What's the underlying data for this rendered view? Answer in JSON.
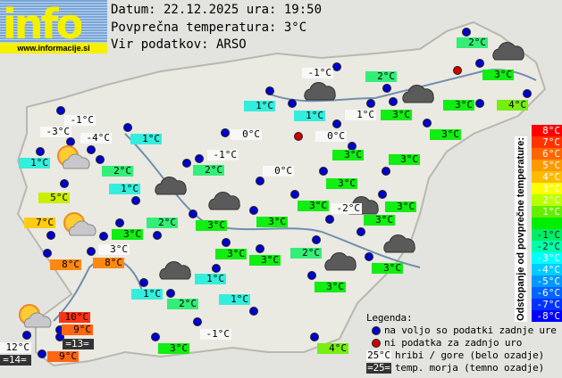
{
  "logo": {
    "word": "info",
    "url": "www.informacije.si"
  },
  "header": {
    "date_line": "Datum: 22.12.2025 ura: 19:50",
    "avg_line": "Povprečna temperatura: 3°C",
    "source_line": "Vir podatkov: ARSO"
  },
  "colors": {
    "white": "#f8f8f6",
    "dark": "#333333",
    "green": "#11ee11",
    "mint": "#33ee77",
    "cyan": "#33eedd",
    "lime": "#77ee11",
    "yellowgreen": "#ccee00",
    "amber": "#ffcc11",
    "orange": "#ff8811",
    "darkorange": "#ff6611",
    "red": "#ff3311",
    "dot_available": "#0000cc",
    "dot_missing": "#cc0000"
  },
  "labels": [
    {
      "t": "2°C",
      "c": "mint"
    },
    {
      "t": "3°C",
      "c": "green"
    },
    {
      "t": "4°C",
      "c": "lime"
    },
    {
      "t": "3°C",
      "c": "green"
    },
    {
      "t": "-1°C",
      "c": "white"
    },
    {
      "t": "2°C",
      "c": "mint"
    },
    {
      "t": "3°C",
      "c": "green"
    },
    {
      "t": "1°C",
      "c": "white"
    },
    {
      "t": "1°C",
      "c": "cyan"
    },
    {
      "t": "1°C",
      "c": "cyan"
    },
    {
      "t": "0°C",
      "c": "white"
    },
    {
      "t": "0°C",
      "c": "white"
    },
    {
      "t": "3°C",
      "c": "green"
    },
    {
      "t": "3°C",
      "c": "green"
    },
    {
      "t": "3°C",
      "c": "green"
    },
    {
      "t": "3°C",
      "c": "green"
    },
    {
      "t": "0°C",
      "c": "white"
    },
    {
      "t": "3°C",
      "c": "green"
    },
    {
      "t": "-2°C",
      "c": "white"
    },
    {
      "t": "3°C",
      "c": "green"
    },
    {
      "t": "3°C",
      "c": "green"
    },
    {
      "t": "3°C",
      "c": "green"
    },
    {
      "t": "-1°C",
      "c": "white"
    },
    {
      "t": "-3°C",
      "c": "white"
    },
    {
      "t": "-4°C",
      "c": "white"
    },
    {
      "t": "1°C",
      "c": "cyan"
    },
    {
      "t": "2°C",
      "c": "mint"
    },
    {
      "t": "1°C",
      "c": "cyan"
    },
    {
      "t": "5°C",
      "c": "yellowgreen"
    },
    {
      "t": "1°C",
      "c": "cyan"
    },
    {
      "t": "-1°C",
      "c": "white"
    },
    {
      "t": "2°C",
      "c": "mint"
    },
    {
      "t": "7°C",
      "c": "amber"
    },
    {
      "t": "3°C",
      "c": "green"
    },
    {
      "t": "2°C",
      "c": "mint"
    },
    {
      "t": "3°C",
      "c": "green"
    },
    {
      "t": "8°C",
      "c": "orange"
    },
    {
      "t": "3°C",
      "c": "white"
    },
    {
      "t": "8°C",
      "c": "orange"
    },
    {
      "t": "3°C",
      "c": "green"
    },
    {
      "t": "2°C",
      "c": "mint"
    },
    {
      "t": "3°C",
      "c": "green"
    },
    {
      "t": "3°C",
      "c": "green"
    },
    {
      "t": "1°C",
      "c": "cyan"
    },
    {
      "t": "1°C",
      "c": "cyan"
    },
    {
      "t": "2°C",
      "c": "mint"
    },
    {
      "t": "1°C",
      "c": "cyan"
    },
    {
      "t": "-1°C",
      "c": "white"
    },
    {
      "t": "3°C",
      "c": "green"
    },
    {
      "t": "4°C",
      "c": "lime"
    },
    {
      "t": "10°C",
      "c": "red"
    },
    {
      "t": "9°C",
      "c": "darkorange"
    },
    {
      "t": "=13=",
      "c": "dark"
    },
    {
      "t": "12°C",
      "c": "white"
    },
    {
      "t": "=14=",
      "c": "dark"
    },
    {
      "t": "9°C",
      "c": "darkorange"
    },
    {
      "t": "3°C",
      "c": "green"
    }
  ],
  "dots_missing_data": 2,
  "weather_icons": [
    "cloudy",
    "cloudy",
    "cloudy",
    "cloudy",
    "cloudy",
    "cloudy",
    "cloudy",
    "cloudy",
    "cloudy",
    "partly-cloudy",
    "partly-cloudy",
    "partly-cloudy"
  ],
  "scale": {
    "title": "Odstopanje od povprečne temperature:",
    "rows": [
      {
        "t": "8°C",
        "c": "#ff0000"
      },
      {
        "t": "7°C",
        "c": "#ff3300"
      },
      {
        "t": "6°C",
        "c": "#ff6600"
      },
      {
        "t": "5°C",
        "c": "#ff9900"
      },
      {
        "t": "4°C",
        "c": "#ffbb00"
      },
      {
        "t": "3°C",
        "c": "#ffff00"
      },
      {
        "t": "2°C",
        "c": "#bbff00"
      },
      {
        "t": "1°C",
        "c": "#66ee00"
      },
      {
        "t": "",
        "c": "#00ee00"
      },
      {
        "t": "-1°C",
        "c": "#00ee66"
      },
      {
        "t": "-2°C",
        "c": "#00ffaa"
      },
      {
        "t": "-3°C",
        "c": "#00ffff"
      },
      {
        "t": "-4°C",
        "c": "#00ccff"
      },
      {
        "t": "-5°C",
        "c": "#0099ff"
      },
      {
        "t": "-6°C",
        "c": "#0066ff"
      },
      {
        "t": "-7°C",
        "c": "#0033ff"
      },
      {
        "t": "-8°C",
        "c": "#0000ff"
      }
    ]
  },
  "legend": {
    "title": "Legenda:",
    "available": "na voljo so podatki zadnje ure",
    "missing": "ni podatka za zadnjo uro",
    "mountain_sample": "25°C",
    "mountain_text": "hribi / gore (belo ozadje)",
    "sea_sample": "=25=",
    "sea_text": "temp. morja (temno ozadje)"
  }
}
